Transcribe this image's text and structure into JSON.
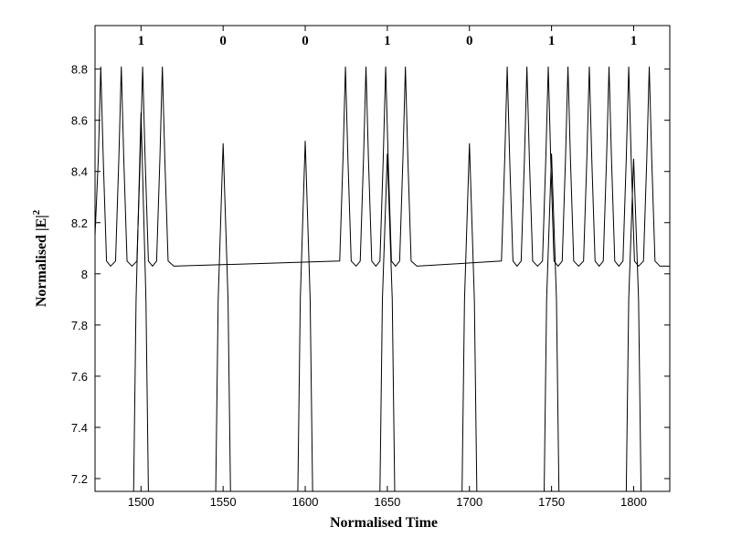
{
  "chart_data": {
    "type": "line",
    "xlabel": "Normalised Time",
    "ylabel": "Normalised  |E|",
    "ylabel_superscript": "2",
    "xlim": [
      1472,
      1822
    ],
    "ylim": [
      7.15,
      8.97
    ],
    "xticks": [
      1500,
      1550,
      1600,
      1650,
      1700,
      1750,
      1800
    ],
    "yticks": [
      7.2,
      7.4,
      7.6,
      7.8,
      8,
      8.2,
      8.4,
      8.6,
      8.8
    ],
    "annotations": [
      {
        "x": 1500,
        "text": "1"
      },
      {
        "x": 1550,
        "text": "0"
      },
      {
        "x": 1600,
        "text": "0"
      },
      {
        "x": 1650,
        "text": "1"
      },
      {
        "x": 1700,
        "text": "0"
      },
      {
        "x": 1750,
        "text": "1"
      },
      {
        "x": 1800,
        "text": "1"
      }
    ],
    "series": [
      {
        "color": "#000000",
        "x": [
          1472,
          1474,
          1475.5,
          1477,
          1479,
          1481.5,
          1484.5,
          1486.5,
          1488,
          1489.5,
          1491.5,
          1494.5,
          1497.5,
          1499.5,
          1501,
          1502.5,
          1504.5,
          1507,
          1509.5,
          1511.5,
          1513,
          1514.5,
          1516.5,
          1520,
          1621,
          1623,
          1624.5,
          1626,
          1628,
          1631,
          1633.5,
          1635.5,
          1637,
          1638.5,
          1640.5,
          1643,
          1645.5,
          1647.5,
          1649,
          1650.5,
          1652.5,
          1655,
          1657.5,
          1659.5,
          1661,
          1662.5,
          1664.5,
          1668,
          1719.5,
          1721.5,
          1723,
          1724.5,
          1726.5,
          1729,
          1731.5,
          1733.5,
          1735,
          1736.5,
          1738.5,
          1741.5,
          1744.5,
          1746.5,
          1748,
          1749.5,
          1751.5,
          1754,
          1756.5,
          1758.5,
          1760,
          1761.5,
          1763.5,
          1766.5,
          1769.5,
          1771.5,
          1773,
          1774.5,
          1776.5,
          1779,
          1781.5,
          1783.5,
          1785,
          1786.5,
          1788.5,
          1791,
          1793.5,
          1795.5,
          1797,
          1798.5,
          1800.5,
          1803,
          1806,
          1808,
          1809.5,
          1811,
          1813,
          1816,
          1822
        ],
        "values": [
          8.15,
          8.45,
          8.81,
          8.45,
          8.05,
          8.03,
          8.05,
          8.45,
          8.81,
          8.45,
          8.05,
          8.03,
          8.05,
          8.45,
          8.81,
          8.45,
          8.05,
          8.03,
          8.05,
          8.45,
          8.81,
          8.45,
          8.05,
          8.03,
          8.05,
          8.45,
          8.81,
          8.45,
          8.05,
          8.03,
          8.05,
          8.45,
          8.81,
          8.45,
          8.05,
          8.03,
          8.05,
          8.45,
          8.81,
          8.45,
          8.05,
          8.03,
          8.05,
          8.45,
          8.81,
          8.45,
          8.05,
          8.03,
          8.05,
          8.45,
          8.81,
          8.45,
          8.05,
          8.03,
          8.05,
          8.45,
          8.81,
          8.45,
          8.05,
          8.03,
          8.05,
          8.45,
          8.81,
          8.45,
          8.05,
          8.03,
          8.05,
          8.45,
          8.81,
          8.45,
          8.05,
          8.03,
          8.05,
          8.45,
          8.81,
          8.45,
          8.05,
          8.03,
          8.05,
          8.45,
          8.81,
          8.45,
          8.05,
          8.03,
          8.05,
          8.45,
          8.81,
          8.45,
          8.05,
          8.03,
          8.05,
          8.45,
          8.81,
          8.45,
          8.05,
          8.03,
          8.03
        ]
      },
      {
        "color": "#000000",
        "x": [
          1495.5,
          1497,
          1500,
          1503,
          1504.5,
          null,
          1545.5,
          1547,
          1550,
          1553,
          1554.5,
          null,
          1595.5,
          1597,
          1600,
          1603,
          1604.5,
          null,
          1645.5,
          1647,
          1650,
          1653,
          1654.5,
          null,
          1695.5,
          1697,
          1700,
          1703,
          1704.5,
          null,
          1745.5,
          1747,
          1750,
          1753,
          1754.5,
          null,
          1795.5,
          1797,
          1800,
          1803,
          1804.5
        ],
        "values": [
          7.15,
          7.9,
          8.63,
          7.9,
          7.15,
          null,
          7.15,
          7.9,
          8.51,
          7.9,
          7.15,
          null,
          7.15,
          7.9,
          8.52,
          7.9,
          7.15,
          null,
          7.15,
          7.9,
          8.47,
          7.9,
          7.15,
          null,
          7.15,
          7.9,
          8.51,
          7.9,
          7.15,
          null,
          7.15,
          7.9,
          8.47,
          7.9,
          7.15,
          null,
          7.15,
          7.9,
          8.45,
          7.9,
          7.15
        ]
      }
    ]
  }
}
